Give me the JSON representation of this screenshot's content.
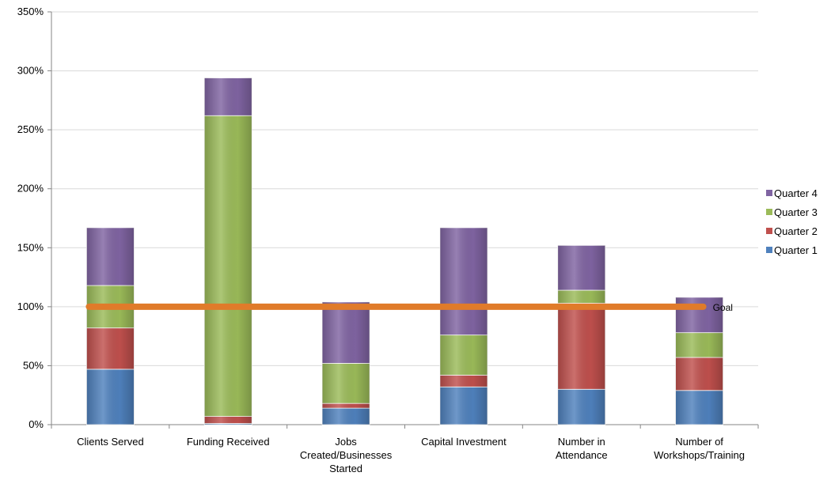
{
  "chart_data": {
    "type": "bar",
    "stacked": true,
    "categories": [
      [
        "Clients Served"
      ],
      [
        "Funding Received"
      ],
      [
        "Jobs",
        "Created/Businesses",
        "Started"
      ],
      [
        "Capital Investment"
      ],
      [
        "Number in",
        "Attendance"
      ],
      [
        "Number of",
        "Workshops/Training"
      ]
    ],
    "series": [
      {
        "name": "Quarter 1",
        "color": "#4f81bd",
        "values": [
          47,
          1,
          14,
          32,
          30,
          29
        ]
      },
      {
        "name": "Quarter 2",
        "color": "#c0504d",
        "values": [
          35,
          6,
          4,
          10,
          73,
          28
        ]
      },
      {
        "name": "Quarter 3",
        "color": "#9bbb59",
        "values": [
          36,
          255,
          34,
          34,
          11,
          21
        ]
      },
      {
        "name": "Quarter 4",
        "color": "#8064a2",
        "values": [
          49,
          32,
          52,
          91,
          38,
          30
        ]
      }
    ],
    "goal": {
      "name": "Goal",
      "value": 100,
      "color": "#e07b2a"
    },
    "yticks": [
      "0%",
      "50%",
      "100%",
      "150%",
      "200%",
      "250%",
      "300%",
      "350%"
    ],
    "ylim": [
      0,
      350
    ],
    "grid": true,
    "legend_position": "right",
    "legend_order": [
      "Quarter 4",
      "Quarter 3",
      "Quarter 2",
      "Quarter 1"
    ]
  }
}
